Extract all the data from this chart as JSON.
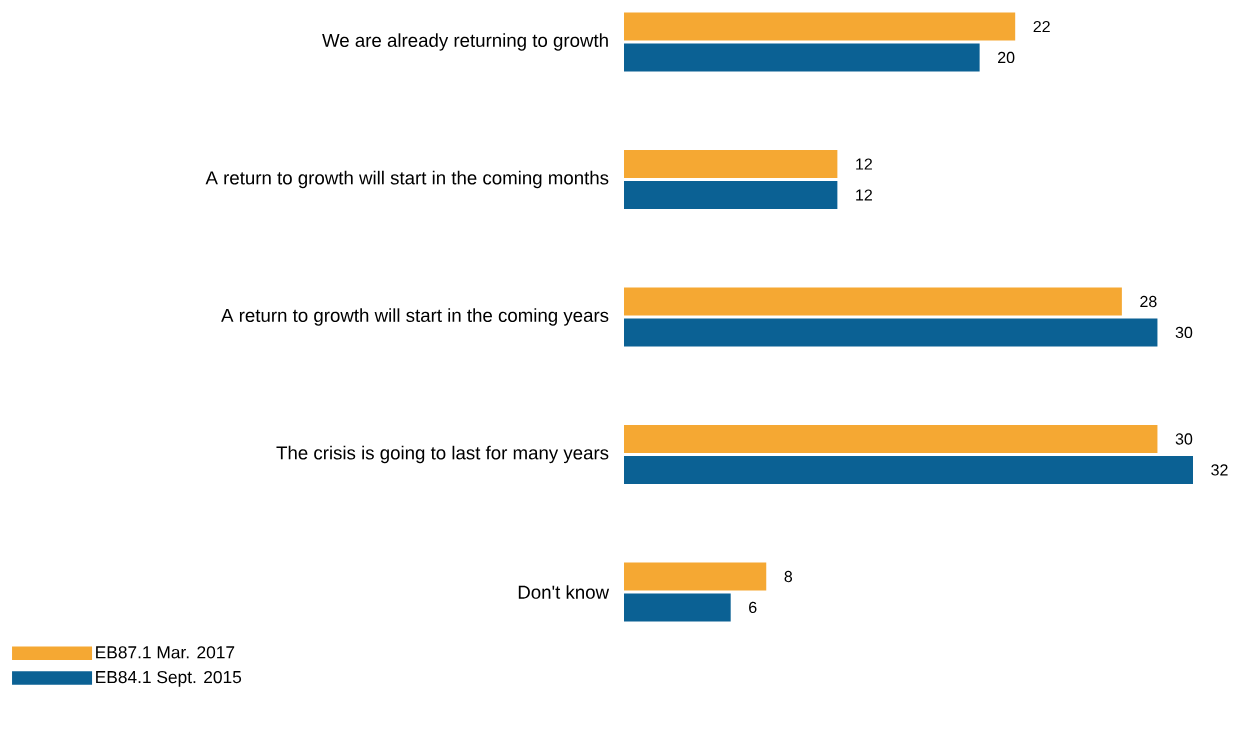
{
  "chart_data": {
    "type": "bar",
    "orientation": "horizontal",
    "categories": [
      "We are already returning to growth",
      "A return to growth will start in the coming months",
      "A return to growth will start in the coming years",
      "The crisis is going to last for many years",
      "Don't know"
    ],
    "series": [
      {
        "name": "EB87.1 Mar. 2017",
        "color": "#f5a833",
        "values": [
          22,
          12,
          28,
          30,
          8
        ]
      },
      {
        "name": "EB84.1 Sept. 2015",
        "color": "#0b6194",
        "values": [
          20,
          12,
          30,
          32,
          6
        ]
      }
    ],
    "data_labels": true,
    "legend": "bottom left"
  }
}
